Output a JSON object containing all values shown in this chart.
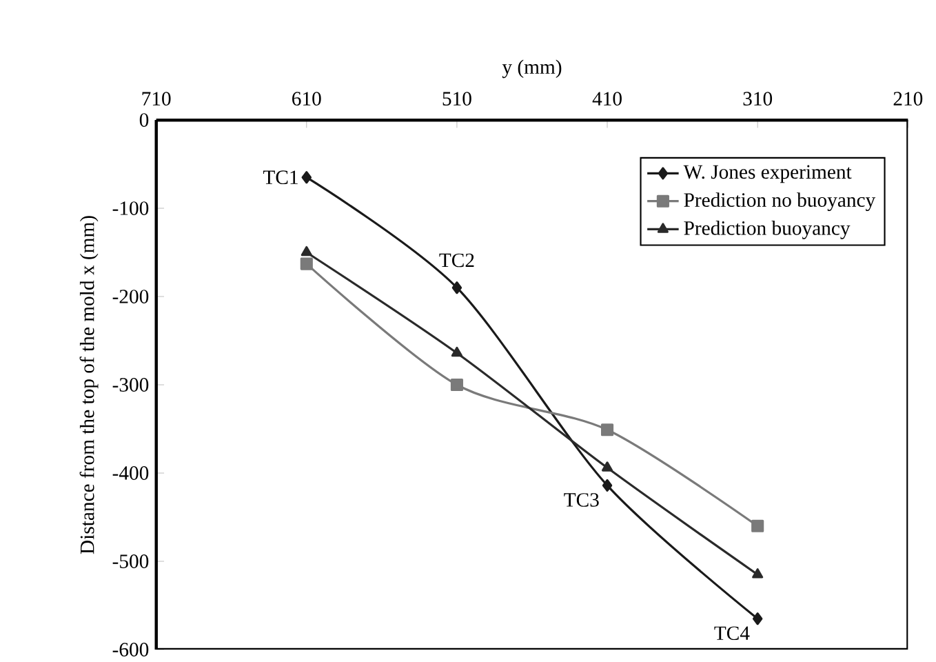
{
  "chart_data": {
    "type": "line",
    "xlabel": "y (mm)",
    "ylabel": "Distance from the top of the mold x (mm)",
    "xlim": [
      710,
      210
    ],
    "xticks": [
      710,
      610,
      510,
      410,
      310,
      210
    ],
    "ylim": [
      -600,
      0
    ],
    "yticks": [
      0,
      -100,
      -200,
      -300,
      -400,
      -500,
      -600
    ],
    "x": [
      610,
      510,
      410,
      310
    ],
    "series": [
      {
        "name": "W. Jones experiment",
        "color": "#1a1a1a",
        "marker": "diamond",
        "values": [
          -65,
          -190,
          -414,
          -565
        ]
      },
      {
        "name": "Prediction no buoyancy",
        "color": "#7a7a7a",
        "marker": "square",
        "values": [
          -163,
          -300,
          -351,
          -460
        ]
      },
      {
        "name": "Prediction buoyancy",
        "color": "#2a2a2a",
        "marker": "triangle",
        "values": [
          -150,
          -264,
          -394,
          -515
        ]
      }
    ],
    "annotations": [
      {
        "text": "TC1",
        "x": 610,
        "y": -65
      },
      {
        "text": "TC2",
        "x": 510,
        "y": -190
      },
      {
        "text": "TC3",
        "x": 410,
        "y": -414
      },
      {
        "text": "TC4",
        "x": 310,
        "y": -565
      }
    ],
    "legend": "top right",
    "grid": false
  }
}
